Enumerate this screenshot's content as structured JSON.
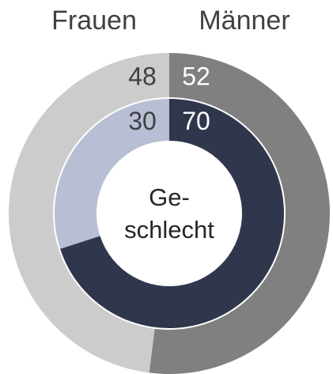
{
  "chart_data": {
    "type": "donut",
    "categories": [
      "Männer",
      "Frauen"
    ],
    "center_label": [
      "Ge-",
      "schlecht"
    ],
    "series": [
      {
        "values": [
          52,
          48
        ],
        "colors": [
          "#808080",
          "#cccccc"
        ],
        "label_colors": [
          "#ffffff",
          "#404040"
        ]
      },
      {
        "values": [
          70,
          30
        ],
        "colors": [
          "#30374d",
          "#b8bfd4"
        ],
        "label_colors": [
          "#ffffff",
          "#404040"
        ]
      }
    ]
  }
}
